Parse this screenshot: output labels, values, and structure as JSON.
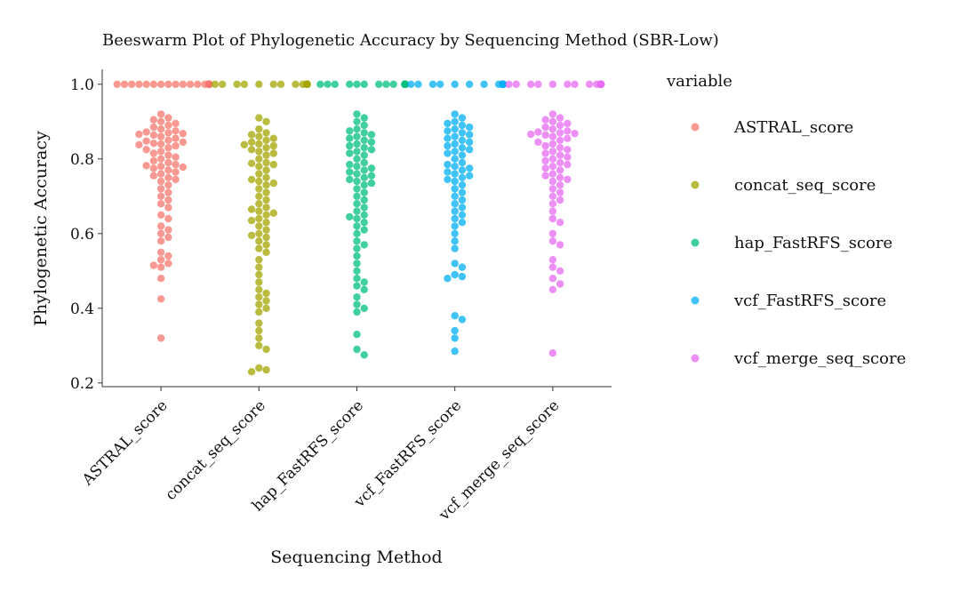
{
  "chart_data": {
    "type": "scatter",
    "title": "Beeswarm Plot of Phylogenetic Accuracy by Sequencing Method (SBR-Low)",
    "xlabel": "Sequencing Method",
    "ylabel": "Phylogenetic Accuracy",
    "categories": [
      "ASTRAL_score",
      "concat_seq_score",
      "hap_FastRFS_score",
      "vcf_FastRFS_score",
      "vcf_merge_seq_score"
    ],
    "ylim": [
      0.19,
      1.04
    ],
    "yticks": [
      0.2,
      0.4,
      0.6,
      0.8,
      1.0
    ],
    "ytick_labels": [
      "0.2",
      "0.4",
      "0.6",
      "0.8",
      "1.0"
    ],
    "grid": false,
    "legend": {
      "title": "variable",
      "position": "right",
      "entries": [
        "ASTRAL_score",
        "concat_seq_score",
        "hap_FastRFS_score",
        "vcf_FastRFS_score",
        "vcf_merge_seq_score"
      ]
    },
    "series": [
      {
        "name": "ASTRAL_score",
        "color": "#F8766D",
        "values": [
          1.0,
          1.0,
          1.0,
          1.0,
          1.0,
          1.0,
          1.0,
          1.0,
          1.0,
          1.0,
          1.0,
          1.0,
          1.0,
          1.0,
          1.0,
          1.0,
          1.0,
          1.0,
          1.0,
          1.0,
          1.0,
          1.0,
          1.0,
          1.0,
          1.0,
          1.0,
          1.0,
          1.0,
          1.0,
          1.0,
          1.0,
          1.0,
          1.0,
          1.0,
          1.0,
          1.0,
          1.0,
          1.0,
          1.0,
          1.0,
          1.0,
          1.0,
          1.0,
          1.0,
          1.0,
          1.0,
          1.0,
          1.0,
          1.0,
          1.0,
          1.0,
          1.0,
          1.0,
          1.0,
          0.92,
          0.91,
          0.905,
          0.9,
          0.895,
          0.89,
          0.885,
          0.88,
          0.875,
          0.872,
          0.87,
          0.868,
          0.866,
          0.864,
          0.86,
          0.855,
          0.85,
          0.848,
          0.845,
          0.842,
          0.84,
          0.838,
          0.835,
          0.83,
          0.825,
          0.82,
          0.815,
          0.81,
          0.805,
          0.8,
          0.795,
          0.79,
          0.785,
          0.782,
          0.78,
          0.778,
          0.775,
          0.77,
          0.765,
          0.76,
          0.755,
          0.75,
          0.745,
          0.74,
          0.73,
          0.72,
          0.71,
          0.7,
          0.69,
          0.68,
          0.67,
          0.65,
          0.64,
          0.62,
          0.61,
          0.6,
          0.59,
          0.58,
          0.55,
          0.54,
          0.53,
          0.52,
          0.515,
          0.51,
          0.48,
          0.425,
          0.32
        ]
      },
      {
        "name": "concat_seq_score",
        "color": "#A3A500",
        "values": [
          1.0,
          1.0,
          1.0,
          1.0,
          1.0,
          1.0,
          1.0,
          1.0,
          1.0,
          1.0,
          1.0,
          1.0,
          1.0,
          1.0,
          1.0,
          1.0,
          1.0,
          1.0,
          1.0,
          1.0,
          1.0,
          1.0,
          1.0,
          1.0,
          1.0,
          1.0,
          1.0,
          1.0,
          1.0,
          1.0,
          1.0,
          1.0,
          1.0,
          1.0,
          1.0,
          1.0,
          1.0,
          1.0,
          1.0,
          1.0,
          1.0,
          1.0,
          1.0,
          1.0,
          1.0,
          1.0,
          1.0,
          1.0,
          1.0,
          1.0,
          0.91,
          0.9,
          0.88,
          0.87,
          0.865,
          0.86,
          0.855,
          0.85,
          0.845,
          0.84,
          0.838,
          0.835,
          0.83,
          0.825,
          0.82,
          0.815,
          0.81,
          0.8,
          0.79,
          0.788,
          0.785,
          0.78,
          0.77,
          0.76,
          0.75,
          0.745,
          0.74,
          0.735,
          0.73,
          0.72,
          0.71,
          0.7,
          0.69,
          0.68,
          0.67,
          0.665,
          0.66,
          0.655,
          0.65,
          0.64,
          0.635,
          0.63,
          0.62,
          0.61,
          0.6,
          0.595,
          0.59,
          0.58,
          0.57,
          0.56,
          0.55,
          0.53,
          0.51,
          0.49,
          0.47,
          0.45,
          0.44,
          0.43,
          0.42,
          0.41,
          0.4,
          0.39,
          0.36,
          0.34,
          0.32,
          0.3,
          0.29,
          0.24,
          0.235,
          0.23
        ]
      },
      {
        "name": "hap_FastRFS_score",
        "color": "#00BF7D",
        "values": [
          1.0,
          1.0,
          1.0,
          1.0,
          1.0,
          1.0,
          1.0,
          1.0,
          1.0,
          1.0,
          1.0,
          1.0,
          1.0,
          1.0,
          1.0,
          1.0,
          1.0,
          1.0,
          1.0,
          1.0,
          1.0,
          1.0,
          1.0,
          1.0,
          1.0,
          1.0,
          1.0,
          1.0,
          1.0,
          1.0,
          1.0,
          1.0,
          1.0,
          1.0,
          1.0,
          1.0,
          1.0,
          1.0,
          1.0,
          1.0,
          1.0,
          1.0,
          1.0,
          1.0,
          1.0,
          1.0,
          1.0,
          1.0,
          1.0,
          1.0,
          1.0,
          1.0,
          1.0,
          1.0,
          1.0,
          1.0,
          0.92,
          0.91,
          0.9,
          0.89,
          0.88,
          0.875,
          0.87,
          0.865,
          0.86,
          0.855,
          0.85,
          0.845,
          0.84,
          0.835,
          0.83,
          0.825,
          0.82,
          0.815,
          0.81,
          0.8,
          0.79,
          0.785,
          0.78,
          0.775,
          0.77,
          0.765,
          0.76,
          0.755,
          0.75,
          0.745,
          0.74,
          0.735,
          0.73,
          0.72,
          0.71,
          0.7,
          0.69,
          0.68,
          0.67,
          0.66,
          0.65,
          0.645,
          0.64,
          0.63,
          0.62,
          0.61,
          0.6,
          0.58,
          0.57,
          0.56,
          0.54,
          0.52,
          0.5,
          0.48,
          0.47,
          0.46,
          0.45,
          0.43,
          0.41,
          0.4,
          0.39,
          0.33,
          0.29,
          0.275
        ]
      },
      {
        "name": "vcf_FastRFS_score",
        "color": "#00B0F6",
        "values": [
          1.0,
          1.0,
          1.0,
          1.0,
          1.0,
          1.0,
          1.0,
          1.0,
          1.0,
          1.0,
          1.0,
          1.0,
          1.0,
          1.0,
          1.0,
          1.0,
          1.0,
          1.0,
          1.0,
          1.0,
          1.0,
          1.0,
          1.0,
          1.0,
          1.0,
          1.0,
          1.0,
          1.0,
          1.0,
          1.0,
          1.0,
          1.0,
          1.0,
          1.0,
          1.0,
          1.0,
          1.0,
          1.0,
          1.0,
          1.0,
          1.0,
          1.0,
          1.0,
          1.0,
          1.0,
          1.0,
          1.0,
          1.0,
          1.0,
          1.0,
          1.0,
          1.0,
          1.0,
          1.0,
          0.92,
          0.91,
          0.9,
          0.895,
          0.89,
          0.885,
          0.88,
          0.875,
          0.87,
          0.865,
          0.86,
          0.855,
          0.85,
          0.845,
          0.84,
          0.835,
          0.83,
          0.825,
          0.82,
          0.815,
          0.81,
          0.8,
          0.79,
          0.785,
          0.78,
          0.775,
          0.77,
          0.765,
          0.76,
          0.755,
          0.75,
          0.745,
          0.74,
          0.73,
          0.72,
          0.71,
          0.7,
          0.69,
          0.68,
          0.67,
          0.66,
          0.65,
          0.64,
          0.63,
          0.62,
          0.6,
          0.58,
          0.56,
          0.52,
          0.51,
          0.49,
          0.485,
          0.48,
          0.38,
          0.37,
          0.34,
          0.32,
          0.285
        ]
      },
      {
        "name": "vcf_merge_seq_score",
        "color": "#E76BF3",
        "values": [
          1.0,
          1.0,
          1.0,
          1.0,
          1.0,
          1.0,
          1.0,
          1.0,
          1.0,
          1.0,
          1.0,
          1.0,
          1.0,
          1.0,
          1.0,
          1.0,
          1.0,
          1.0,
          1.0,
          1.0,
          1.0,
          1.0,
          1.0,
          1.0,
          1.0,
          1.0,
          1.0,
          1.0,
          1.0,
          1.0,
          1.0,
          1.0,
          1.0,
          1.0,
          1.0,
          1.0,
          1.0,
          1.0,
          1.0,
          1.0,
          1.0,
          1.0,
          1.0,
          1.0,
          1.0,
          1.0,
          1.0,
          1.0,
          1.0,
          1.0,
          1.0,
          1.0,
          0.92,
          0.91,
          0.905,
          0.9,
          0.895,
          0.89,
          0.885,
          0.88,
          0.875,
          0.872,
          0.87,
          0.868,
          0.866,
          0.864,
          0.86,
          0.855,
          0.85,
          0.845,
          0.84,
          0.835,
          0.83,
          0.825,
          0.82,
          0.815,
          0.81,
          0.805,
          0.8,
          0.795,
          0.79,
          0.785,
          0.78,
          0.775,
          0.77,
          0.76,
          0.755,
          0.75,
          0.745,
          0.74,
          0.73,
          0.72,
          0.71,
          0.7,
          0.69,
          0.68,
          0.66,
          0.64,
          0.63,
          0.6,
          0.58,
          0.57,
          0.53,
          0.51,
          0.5,
          0.48,
          0.465,
          0.45,
          0.28
        ]
      }
    ]
  }
}
